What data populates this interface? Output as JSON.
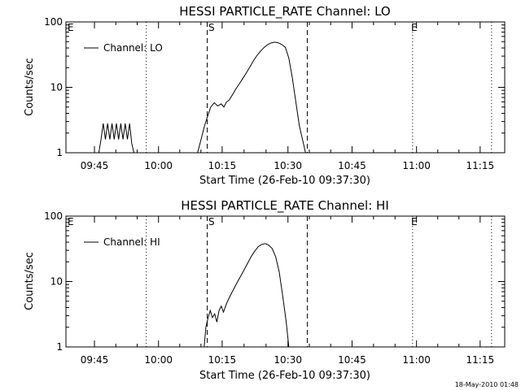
{
  "footer_timestamp": "18-May-2010 01:48",
  "chart_data": [
    {
      "type": "line",
      "title": "HESSI PARTICLE_RATE Channel: LO",
      "xlabel": "Start Time (26-Feb-10 09:37:30)",
      "ylabel": "Counts/sec",
      "yscale": "log",
      "ylim": [
        1,
        100
      ],
      "xlim": [
        0,
        100
      ],
      "xtick_labels": [
        "09:45",
        "10:00",
        "10:15",
        "10:30",
        "10:45",
        "11:00",
        "11:15"
      ],
      "ytick_labels": [
        "1",
        "10",
        "100"
      ],
      "legend": "Channel: LO",
      "legend_position": "top-left",
      "markers": [
        "E",
        "S",
        "E"
      ],
      "series": [
        {
          "name": "Channel: LO",
          "segments": [
            [
              [
                7.5,
                1
              ],
              [
                8.0,
                1.6
              ],
              [
                8.5,
                2.8
              ],
              [
                9.0,
                1.6
              ],
              [
                9.5,
                2.8
              ],
              [
                10.0,
                1.6
              ],
              [
                10.5,
                2.8
              ],
              [
                11.0,
                1.6
              ],
              [
                11.5,
                2.8
              ],
              [
                12.0,
                1.6
              ],
              [
                12.5,
                2.8
              ],
              [
                13.0,
                1.6
              ],
              [
                13.5,
                2.8
              ],
              [
                14.0,
                1.6
              ],
              [
                14.5,
                2.8
              ],
              [
                15.0,
                1.4
              ],
              [
                15.5,
                1
              ]
            ],
            [
              [
                30.0,
                1
              ],
              [
                30.8,
                1.6
              ],
              [
                31.6,
                2.6
              ],
              [
                32.4,
                3.8
              ],
              [
                33.0,
                5
              ],
              [
                33.8,
                5.8
              ],
              [
                34.6,
                5.2
              ],
              [
                35.4,
                5.6
              ],
              [
                36.0,
                5
              ],
              [
                36.6,
                6
              ],
              [
                37.2,
                6.4
              ],
              [
                38.0,
                7.8
              ],
              [
                38.8,
                9.6
              ],
              [
                39.6,
                11.5
              ],
              [
                40.4,
                14
              ],
              [
                41.2,
                17
              ],
              [
                42.0,
                21
              ],
              [
                42.8,
                26
              ],
              [
                43.6,
                31
              ],
              [
                44.4,
                36
              ],
              [
                45.2,
                41
              ],
              [
                46.0,
                45
              ],
              [
                46.8,
                48
              ],
              [
                47.6,
                49
              ],
              [
                48.4,
                48
              ],
              [
                49.2,
                45
              ],
              [
                50.0,
                41
              ],
              [
                50.8,
                28
              ],
              [
                51.6,
                14
              ],
              [
                52.4,
                6
              ],
              [
                53.2,
                2.6
              ],
              [
                54.0,
                1.5
              ],
              [
                54.6,
                1
              ]
            ]
          ]
        }
      ],
      "vlines": [
        {
          "style": "dotted",
          "x": 18.3
        },
        {
          "style": "dashed",
          "x": 32.2
        },
        {
          "style": "dashed",
          "x": 55.0
        },
        {
          "style": "dotted",
          "x": 79.0
        },
        {
          "style": "dotted",
          "x": 97.0
        }
      ]
    },
    {
      "type": "line",
      "title": "HESSI PARTICLE_RATE Channel: HI",
      "xlabel": "Start Time (26-Feb-10 09:37:30)",
      "ylabel": "Counts/sec",
      "yscale": "log",
      "ylim": [
        1,
        100
      ],
      "xlim": [
        0,
        100
      ],
      "xtick_labels": [
        "09:45",
        "10:00",
        "10:15",
        "10:30",
        "10:45",
        "11:00",
        "11:15"
      ],
      "ytick_labels": [
        "1",
        "10",
        "100"
      ],
      "legend": "Channel: HI",
      "legend_position": "top-left",
      "markers": [
        "E",
        "S",
        "E"
      ],
      "series": [
        {
          "name": "Channel: HI",
          "segments": [
            [
              [
                31.5,
                1
              ],
              [
                31.9,
                2.0
              ],
              [
                32.4,
                2.8
              ],
              [
                32.9,
                3.6
              ],
              [
                33.4,
                2.8
              ],
              [
                33.9,
                3.2
              ],
              [
                34.4,
                2.4
              ],
              [
                34.9,
                3.6
              ],
              [
                35.4,
                4.2
              ],
              [
                35.9,
                3.4
              ],
              [
                36.6,
                4.6
              ],
              [
                37.4,
                6
              ],
              [
                38.2,
                7.6
              ],
              [
                39.0,
                9.6
              ],
              [
                39.8,
                12
              ],
              [
                40.6,
                15
              ],
              [
                41.4,
                19
              ],
              [
                42.2,
                24
              ],
              [
                43.0,
                29
              ],
              [
                43.8,
                34
              ],
              [
                44.6,
                37
              ],
              [
                45.4,
                38
              ],
              [
                46.2,
                36
              ],
              [
                47.0,
                32
              ],
              [
                47.8,
                24
              ],
              [
                48.6,
                14
              ],
              [
                49.4,
                6
              ],
              [
                50.2,
                2.4
              ],
              [
                50.8,
                1
              ]
            ]
          ]
        }
      ],
      "vlines": [
        {
          "style": "dotted",
          "x": 18.3
        },
        {
          "style": "dashed",
          "x": 32.2
        },
        {
          "style": "dashed",
          "x": 55.0
        },
        {
          "style": "dotted",
          "x": 79.0
        },
        {
          "style": "dotted",
          "x": 97.0
        }
      ]
    }
  ]
}
